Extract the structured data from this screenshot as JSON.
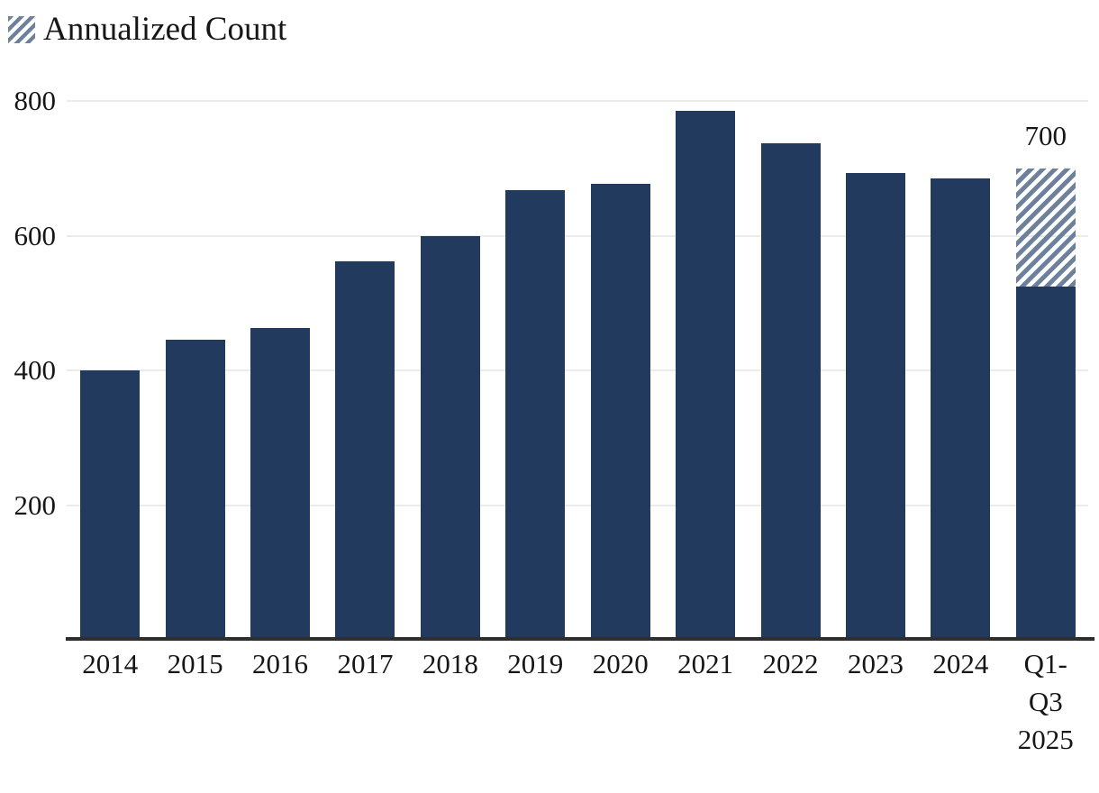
{
  "chart_data": {
    "type": "bar",
    "title": "",
    "legend": {
      "label": "Annualized Count",
      "swatch": "hatched-diagonal"
    },
    "categories": [
      "2014",
      "2015",
      "2016",
      "2017",
      "2018",
      "2019",
      "2020",
      "2021",
      "2022",
      "2023",
      "2024",
      "Q1-Q3 2025"
    ],
    "series": [
      {
        "name": "Count",
        "values": [
          400,
          446,
          463,
          562,
          600,
          668,
          677,
          785,
          737,
          693,
          685,
          525
        ]
      },
      {
        "name": "Annualized Count",
        "values": [
          null,
          null,
          null,
          null,
          null,
          null,
          null,
          null,
          null,
          null,
          null,
          700
        ]
      }
    ],
    "annotations": [
      {
        "category": "Q1-Q3 2025",
        "series": "Annualized Count",
        "text": "700"
      }
    ],
    "yticks": [
      "200",
      "400",
      "600",
      "800"
    ],
    "ylim": [
      0,
      800
    ],
    "grid": "horizontal-light",
    "legend_position": "top-left",
    "colors": {
      "bar": "#213A5E",
      "hatch_stripe": "#6E819C",
      "gridline": "#EBEBEB",
      "axis": "#2E2E2E",
      "text": "#161616"
    }
  }
}
